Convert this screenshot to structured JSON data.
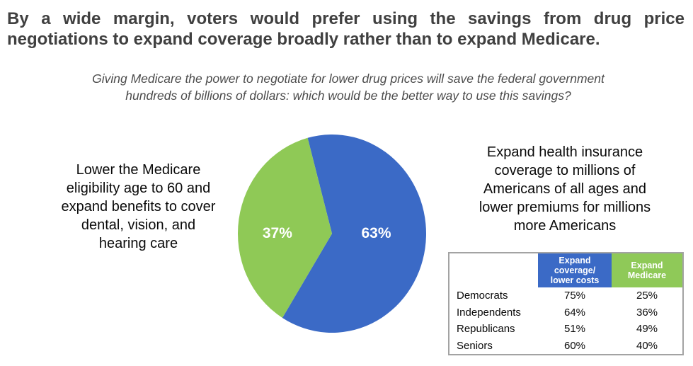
{
  "chart_data": [
    {
      "type": "pie",
      "title": "By a wide margin, voters would prefer using the savings from drug price negotiations to expand coverage broadly rather than to expand Medicare.",
      "title_lines": [
        "By a wide margin, voters would prefer using the savings from drug price",
        "negotiations to expand coverage broadly rather than to expand Medicare."
      ],
      "subtitle_lines": [
        "Giving Medicare the power to negotiate for lower drug prices will save the federal government",
        "hundreds of billions of dollars: which would be the better way to use this savings?"
      ],
      "start_angle_deg": -15,
      "legend": "none",
      "slices": [
        {
          "name": "Expand coverage/lower costs",
          "value": 63,
          "display": "63%",
          "color": "#3b6ac6",
          "annotation_lines": [
            "Expand health insurance",
            "coverage to millions of",
            "Americans of all ages and",
            "lower premiums for millions",
            "more Americans"
          ]
        },
        {
          "name": "Expand Medicare",
          "value": 37,
          "display": "37%",
          "color": "#8fc956",
          "annotation_lines": [
            "Lower the Medicare",
            "eligibility age to 60 and",
            "expand benefits to cover",
            "dental, vision, and",
            "hearing care"
          ]
        }
      ]
    },
    {
      "type": "table",
      "col_headers": [
        {
          "lines": [
            "",
            "",
            ""
          ],
          "bg": "#ffffff"
        },
        {
          "lines": [
            "Expand",
            "coverage/",
            "lower costs"
          ],
          "bg": "#3b6ac6"
        },
        {
          "lines": [
            "Expand",
            "Medicare",
            ""
          ],
          "bg": "#8fc958"
        }
      ],
      "rows": [
        {
          "cells": [
            "Democrats",
            "75%",
            "25%"
          ]
        },
        {
          "cells": [
            "Independents",
            "64%",
            "36%"
          ]
        },
        {
          "cells": [
            "Republicans",
            "51%",
            "49%"
          ]
        },
        {
          "cells": [
            "Seniors",
            "60%",
            "40%"
          ]
        }
      ]
    }
  ],
  "colors": {
    "blue": "#3b6ac6",
    "green": "#8fc956",
    "title_text": "#404040",
    "subtitle_text": "#4c4c4c",
    "table_border": "#a3a3a3"
  }
}
